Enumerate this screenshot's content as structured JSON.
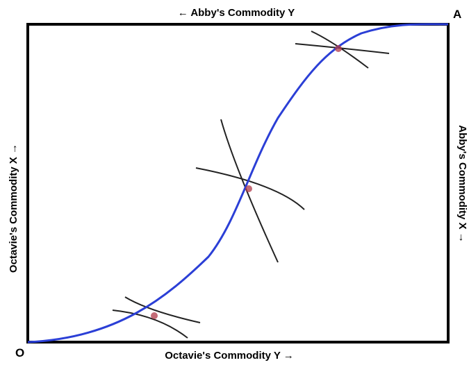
{
  "labels": {
    "bottom_axis": "Octavie's Commodity Y →",
    "top_axis": "← Abby's Commodity Y",
    "left_axis": "Octavie's Commodity X →",
    "right_axis": "Abby's Commodity X →",
    "origin_octavie": "O",
    "origin_abby": "A"
  },
  "colors": {
    "contract_curve": "#2b3fd6",
    "indifference_curves": "#222222",
    "tangency_points": "#b03a4a",
    "frame": "#000000"
  }
}
